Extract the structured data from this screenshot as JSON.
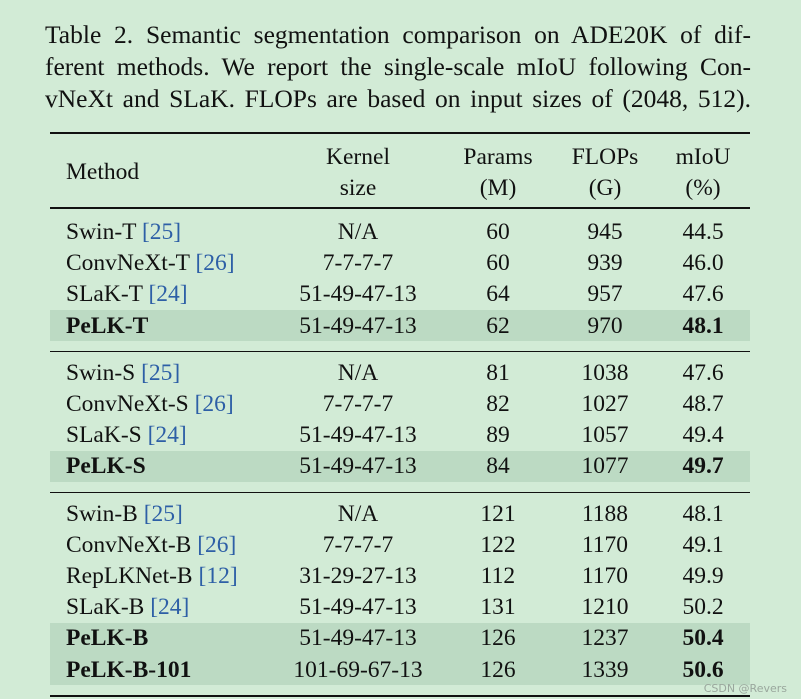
{
  "caption": [
    "Table 2.  Semantic segmentation comparison on ADE20K of dif-",
    "ferent methods.  We report the single-scale mIoU following Con-",
    "vNeXt and SLaK. FLOPs are based on input sizes of (2048, 512)."
  ],
  "table": {
    "header": {
      "method": "Method",
      "kernel": [
        "Kernel",
        "size"
      ],
      "params": [
        "Params",
        "(M)"
      ],
      "flops": [
        "FLOPs",
        "(G)"
      ],
      "miou": [
        "mIoU",
        "(%)"
      ]
    },
    "groups": [
      {
        "rows": [
          {
            "method": "Swin-T",
            "cite": "[25]",
            "kernel": "N/A",
            "params": "60",
            "flops": "945",
            "miou": "44.5"
          },
          {
            "method": "ConvNeXt-T",
            "cite": "[26]",
            "kernel": "7-7-7-7",
            "params": "60",
            "flops": "939",
            "miou": "46.0"
          },
          {
            "method": "SLaK-T",
            "cite": "[24]",
            "kernel": "51-49-47-13",
            "params": "64",
            "flops": "957",
            "miou": "47.6"
          },
          {
            "method": "PeLK-T",
            "kernel": "51-49-47-13",
            "params": "62",
            "flops": "970",
            "miou": "48.1",
            "highlight": true
          }
        ]
      },
      {
        "rows": [
          {
            "method": "Swin-S",
            "cite": "[25]",
            "kernel": "N/A",
            "params": "81",
            "flops": "1038",
            "miou": "47.6"
          },
          {
            "method": "ConvNeXt-S",
            "cite": "[26]",
            "kernel": "7-7-7-7",
            "params": "82",
            "flops": "1027",
            "miou": "48.7"
          },
          {
            "method": "SLaK-S",
            "cite": "[24]",
            "kernel": "51-49-47-13",
            "params": "89",
            "flops": "1057",
            "miou": "49.4"
          },
          {
            "method": "PeLK-S",
            "kernel": "51-49-47-13",
            "params": "84",
            "flops": "1077",
            "miou": "49.7",
            "highlight": true
          }
        ]
      },
      {
        "rows": [
          {
            "method": "Swin-B",
            "cite": "[25]",
            "kernel": "N/A",
            "params": "121",
            "flops": "1188",
            "miou": "48.1"
          },
          {
            "method": "ConvNeXt-B",
            "cite": "[26]",
            "kernel": "7-7-7-7",
            "params": "122",
            "flops": "1170",
            "miou": "49.1"
          },
          {
            "method": "RepLKNet-B",
            "cite": "[12]",
            "kernel": "31-29-27-13",
            "params": "112",
            "flops": "1170",
            "miou": "49.9"
          },
          {
            "method": "SLaK-B",
            "cite": "[24]",
            "kernel": "51-49-47-13",
            "params": "131",
            "flops": "1210",
            "miou": "50.2"
          },
          {
            "method": "PeLK-B",
            "kernel": "51-49-47-13",
            "params": "126",
            "flops": "1237",
            "miou": "50.4",
            "highlight": true
          },
          {
            "method": "PeLK-B-101",
            "kernel": "101-69-67-13",
            "params": "126",
            "flops": "1339",
            "miou": "50.6",
            "highlight": true
          }
        ]
      }
    ]
  },
  "watermark": "CSDN @Revers"
}
